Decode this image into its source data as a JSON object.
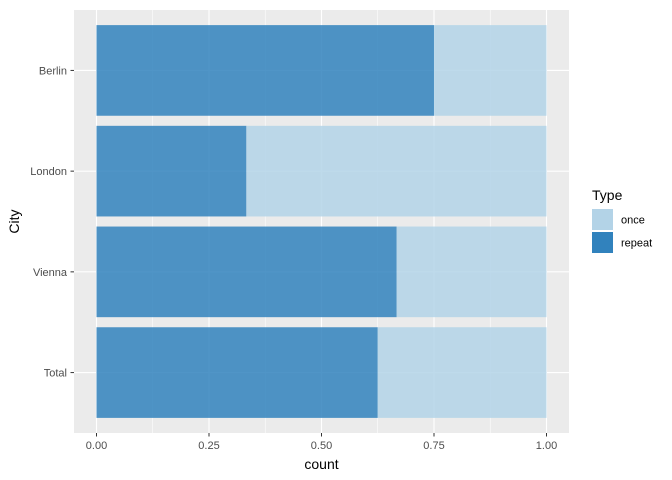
{
  "chart_data": {
    "type": "bar",
    "orientation": "horizontal",
    "stacked": true,
    "normalized": true,
    "categories": [
      "Total",
      "Vienna",
      "London",
      "Berlin"
    ],
    "series": [
      {
        "name": "repeat",
        "values": [
          0.625,
          0.667,
          0.333,
          0.75
        ],
        "color": "#3182bd"
      },
      {
        "name": "once",
        "values": [
          0.375,
          0.333,
          0.667,
          0.25
        ],
        "color": "#b3d3e7"
      }
    ],
    "xlabel": "count",
    "ylabel": "City",
    "xlim": [
      0,
      1
    ],
    "xticks": [
      0,
      0.25,
      0.5,
      0.75,
      1
    ],
    "xtick_labels": [
      "0.00",
      "0.25",
      "0.50",
      "0.75",
      "1.00"
    ],
    "grid": true,
    "legend": {
      "title": "Type",
      "placement": "right",
      "entries": [
        {
          "label": "once",
          "color": "#b3d3e7"
        },
        {
          "label": "repeat",
          "color": "#3182bd"
        }
      ]
    },
    "colors": {
      "panel_background": "#ebebeb",
      "grid": "#ffffff"
    }
  }
}
